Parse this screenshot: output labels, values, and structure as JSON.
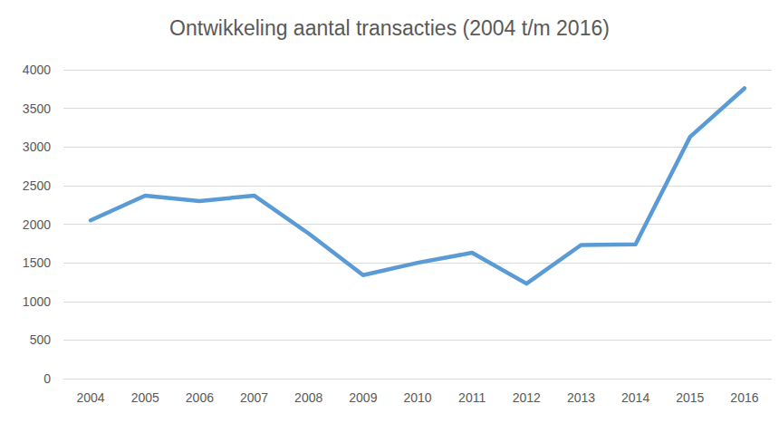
{
  "chart_data": {
    "type": "line",
    "title": "Ontwikkeling aantal transacties (2004 t/m 2016)",
    "categories": [
      "2004",
      "2005",
      "2006",
      "2007",
      "2008",
      "2009",
      "2010",
      "2011",
      "2012",
      "2013",
      "2014",
      "2015",
      "2016"
    ],
    "values": [
      2050,
      2370,
      2300,
      2370,
      1880,
      1340,
      1500,
      1630,
      1230,
      1730,
      1740,
      3130,
      3760
    ],
    "color": "#5b9bd5",
    "ylim": [
      0,
      4000
    ],
    "yticks": [
      0,
      500,
      1000,
      1500,
      2000,
      2500,
      3000,
      3500,
      4000
    ],
    "grid": true
  }
}
